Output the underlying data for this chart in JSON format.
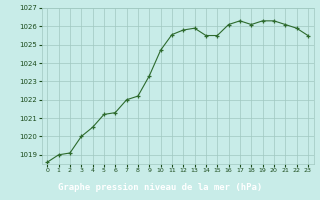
{
  "title": "Graphe pression niveau de la mer (hPa)",
  "x_values": [
    0,
    1,
    2,
    3,
    4,
    5,
    6,
    7,
    8,
    9,
    10,
    11,
    12,
    13,
    14,
    15,
    16,
    17,
    18,
    19,
    20,
    21,
    22,
    23
  ],
  "y_values": [
    1018.6,
    1019.0,
    1019.1,
    1020.0,
    1020.5,
    1021.2,
    1021.3,
    1022.0,
    1022.2,
    1023.3,
    1024.7,
    1025.55,
    1025.8,
    1025.9,
    1025.5,
    1025.5,
    1026.1,
    1026.3,
    1026.1,
    1026.3,
    1026.3,
    1026.1,
    1025.9,
    1025.5
  ],
  "ylim": [
    1018.5,
    1027.0
  ],
  "yticks": [
    1019,
    1020,
    1021,
    1022,
    1023,
    1024,
    1025,
    1026,
    1027
  ],
  "line_color": "#2d6a2d",
  "marker_color": "#2d6a2d",
  "bg_color": "#c8ece8",
  "grid_color": "#a0c8c0",
  "title_color": "#ffffff",
  "tick_color": "#1a4a1a",
  "bottom_bar_color": "#2d6a2d"
}
